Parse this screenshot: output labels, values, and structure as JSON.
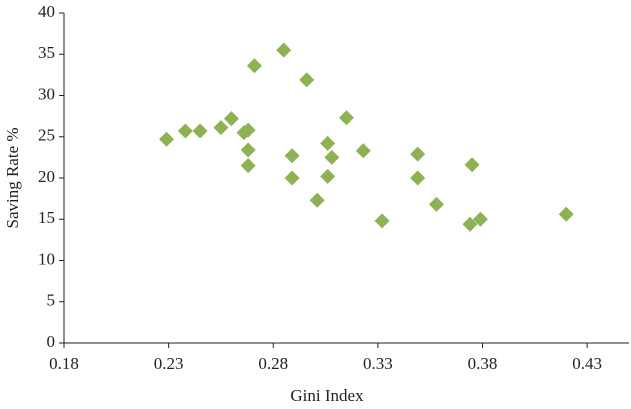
{
  "chart_data": {
    "type": "scatter",
    "x_label": "Gini Index",
    "y_label": "Saving Rate %",
    "series": [
      {
        "name": "Saving Rate",
        "color": "#8db253",
        "x": [
          0.229,
          0.238,
          0.245,
          0.255,
          0.26,
          0.266,
          0.268,
          0.268,
          0.268,
          0.271,
          0.285,
          0.289,
          0.289,
          0.296,
          0.301,
          0.306,
          0.308,
          0.306,
          0.315,
          0.323,
          0.332,
          0.349,
          0.349,
          0.358,
          0.375,
          0.374,
          0.379,
          0.42
        ],
        "values": [
          24.7,
          25.7,
          25.7,
          26.1,
          27.2,
          25.5,
          25.8,
          23.4,
          21.5,
          33.6,
          35.5,
          22.7,
          20.0,
          31.9,
          17.3,
          24.2,
          22.5,
          20.2,
          27.3,
          23.3,
          14.8,
          22.9,
          20.0,
          16.8,
          21.6,
          14.4,
          15.0,
          15.6
        ]
      }
    ],
    "xlim": [
      0.18,
      0.45
    ],
    "xticks": [
      0.18,
      0.23,
      0.28,
      0.33,
      0.38,
      0.43
    ],
    "ylim": [
      0,
      40
    ],
    "yticks": [
      0,
      5,
      10,
      15,
      20,
      25,
      30,
      35,
      40
    ],
    "grid": false
  }
}
